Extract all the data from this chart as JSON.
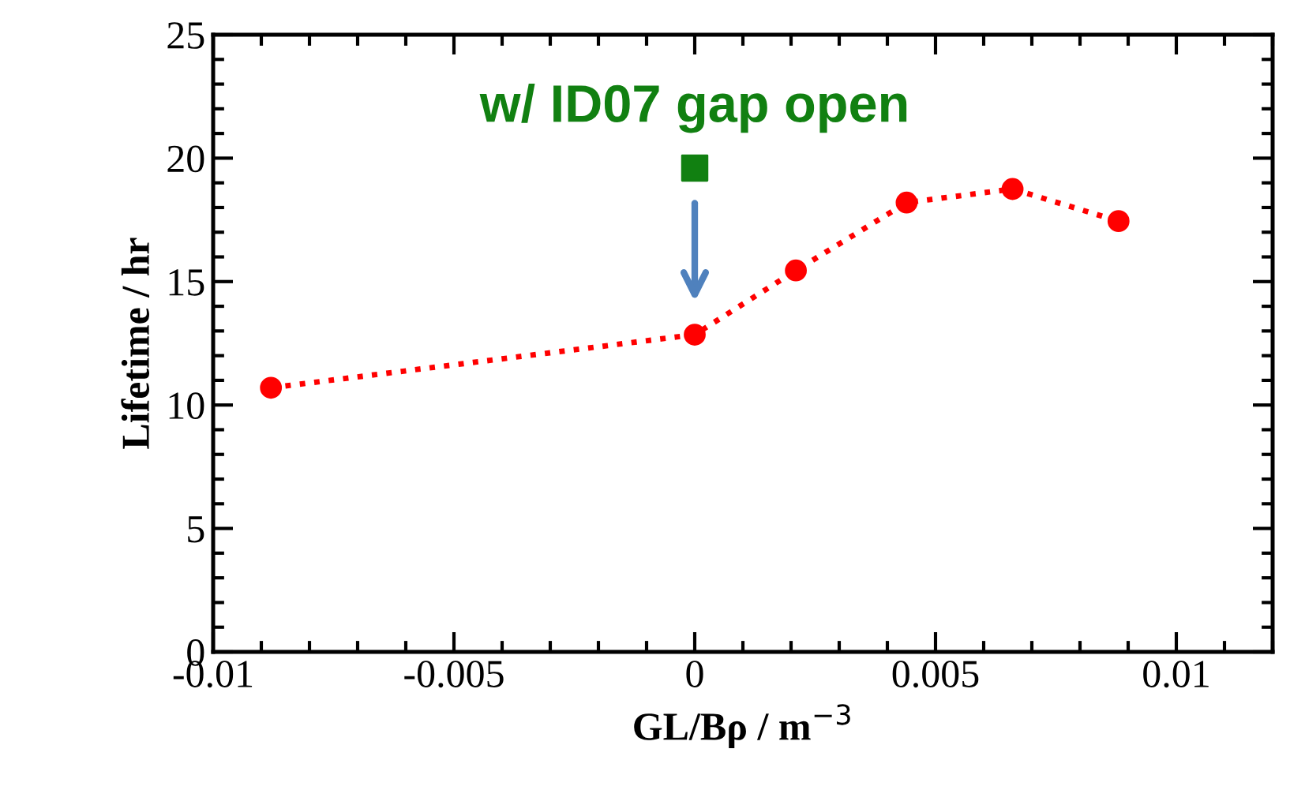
{
  "chart_data": {
    "type": "line",
    "xlabel": "GL/Bρ / m$^{−3}$",
    "ylabel": "Lifetime / hr",
    "annotations": [
      {
        "text": "w/ ID07 gap open",
        "x": 0,
        "y": 19.6
      }
    ],
    "xlim": [
      -0.01,
      0.012
    ],
    "xticks": [
      {
        "value": -0.01,
        "label": "-0.01"
      },
      {
        "value": -0.005,
        "label": "-0.005"
      },
      0,
      0.005,
      0.01
    ],
    "ylim": [
      0,
      25
    ],
    "yticks": [
      0,
      5,
      10,
      15,
      20,
      25
    ],
    "grid": false,
    "series": [
      {
        "color": "#ff0000",
        "marker": "circle",
        "line_style": "dotted",
        "x": [
          -0.0088,
          0,
          0.0021,
          0.0044,
          0.0066,
          0.0088
        ],
        "values": [
          10.7,
          12.85,
          15.45,
          18.2,
          18.75,
          17.45
        ]
      },
      {
        "type": "scatter",
        "color": "#118011",
        "marker": "square",
        "x": [
          0
        ],
        "values": [
          19.6
        ]
      }
    ]
  }
}
